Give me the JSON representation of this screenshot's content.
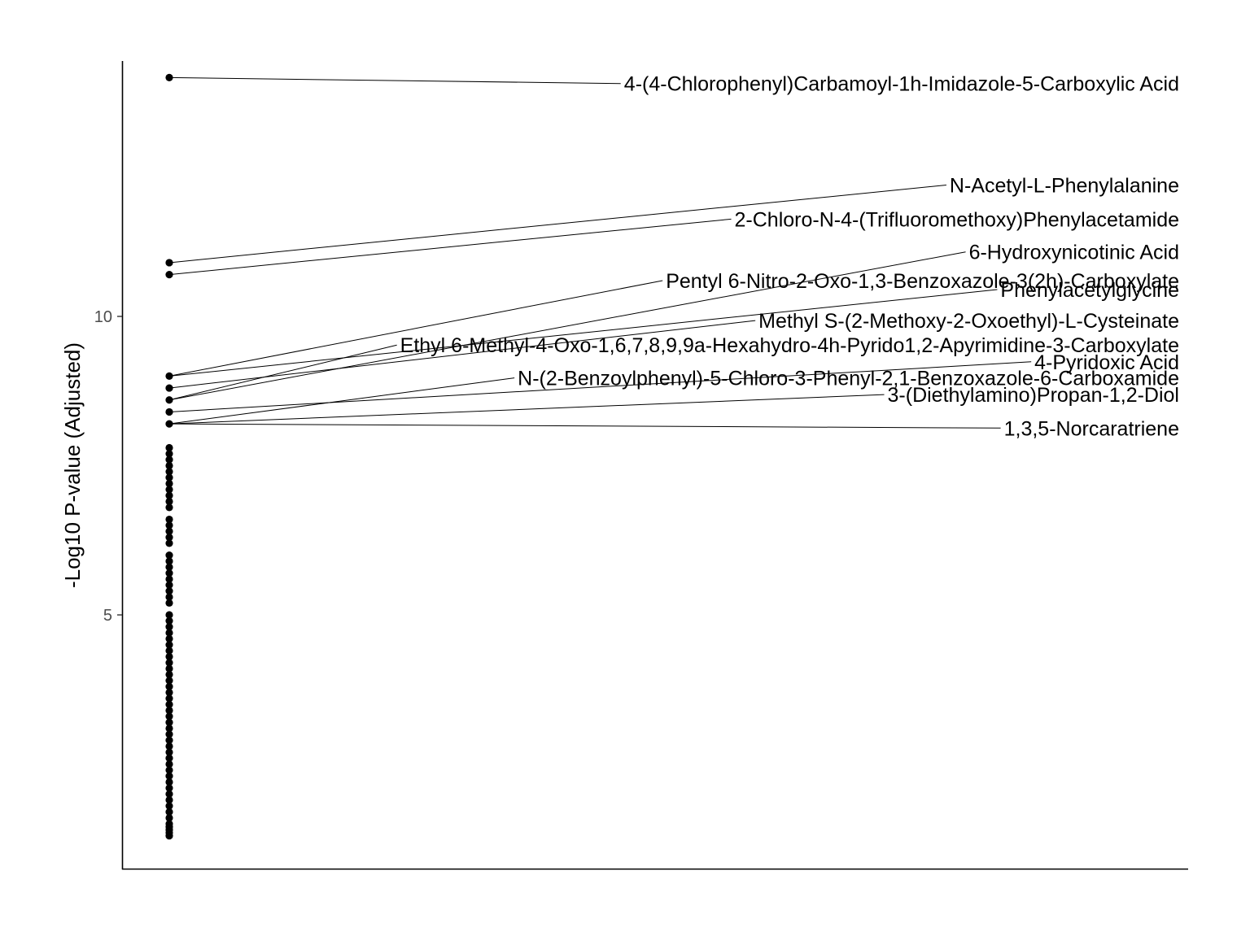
{
  "chart_data": {
    "type": "scatter",
    "ylabel": "-Log10 P-value (Adjusted)",
    "xlabel": "",
    "title": "",
    "ylim": [
      0.7,
      14.2
    ],
    "yticks": [
      5,
      10
    ],
    "grid": false,
    "legend": "none",
    "point_color": "#000000",
    "points": [
      14.0,
      10.9,
      10.7,
      9.0,
      8.8,
      8.6,
      8.4,
      8.2,
      7.8,
      7.7,
      7.6,
      7.5,
      7.4,
      7.3,
      7.2,
      7.1,
      7.0,
      6.9,
      6.8,
      6.6,
      6.5,
      6.4,
      6.3,
      6.2,
      6.0,
      5.9,
      5.8,
      5.7,
      5.6,
      5.5,
      5.4,
      5.3,
      5.2,
      5.0,
      4.9,
      4.8,
      4.7,
      4.6,
      4.5,
      4.4,
      4.3,
      4.2,
      4.1,
      4.0,
      3.9,
      3.8,
      3.7,
      3.6,
      3.5,
      3.4,
      3.3,
      3.2,
      3.1,
      3.0,
      2.9,
      2.8,
      2.7,
      2.6,
      2.5,
      2.4,
      2.3,
      2.2,
      2.1,
      2.0,
      1.9,
      1.8,
      1.7,
      1.6,
      1.5,
      1.45,
      1.4,
      1.35,
      1.3
    ],
    "labels": [
      {
        "text": "4-(4-Chlorophenyl)Carbamoyl-1h-Imidazole-5-Carboxylic Acid",
        "point_y": 14.0,
        "label_y": 13.9
      },
      {
        "text": "N-Acetyl-L-Phenylalanine",
        "point_y": 10.9,
        "label_y": 12.2
      },
      {
        "text": "2-Chloro-N-4-(Trifluoromethoxy)Phenylacetamide",
        "point_y": 10.7,
        "label_y": 11.63
      },
      {
        "text": "6-Hydroxynicotinic Acid",
        "point_y": 8.6,
        "label_y": 11.08
      },
      {
        "text": "Pentyl 6-Nitro-2-Oxo-1,3-Benzoxazole-3(2h)-Carboxylate",
        "point_y": 9.0,
        "label_y": 10.6
      },
      {
        "text": "Phenylacetylglycine",
        "point_y": 9.0,
        "label_y": 10.45
      },
      {
        "text": "Methyl S-(2-Methoxy-2-Oxoethyl)-L-Cysteinate",
        "point_y": 8.8,
        "label_y": 9.93
      },
      {
        "text": "Ethyl 6-Methyl-4-Oxo-1,6,7,8,9,9a-Hexahydro-4h-Pyrido1,2-Apyrimidine-3-Carboxylate",
        "point_y": 8.6,
        "label_y": 9.52
      },
      {
        "text": "4-Pyridoxic Acid",
        "point_y": 8.4,
        "label_y": 9.24
      },
      {
        "text": "N-(2-Benzoylphenyl)-5-Chloro-3-Phenyl-2,1-Benzoxazole-6-Carboxamide",
        "point_y": 8.2,
        "label_y": 8.97
      },
      {
        "text": "3-(Diethylamino)Propan-1,2-Diol",
        "point_y": 8.2,
        "label_y": 8.69
      },
      {
        "text": "1,3,5-Norcaratriene",
        "point_y": 8.2,
        "label_y": 8.13
      }
    ]
  }
}
